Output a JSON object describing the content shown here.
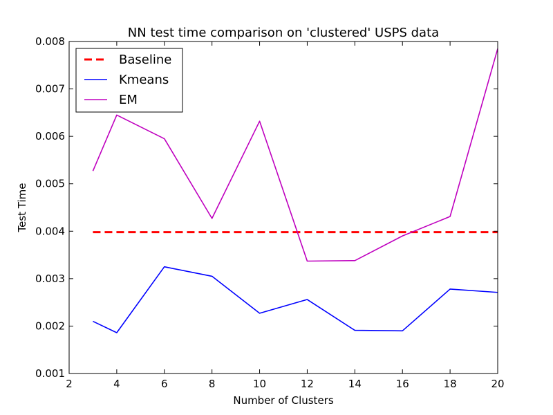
{
  "chart_data": {
    "type": "line",
    "title": "NN test time comparison on 'clustered' USPS data",
    "xlabel": "Number of Clusters",
    "ylabel": "Test Time",
    "xlim": [
      2,
      20
    ],
    "ylim": [
      0.001,
      0.008
    ],
    "xticks": [
      2,
      4,
      6,
      8,
      10,
      12,
      14,
      16,
      18,
      20
    ],
    "yticks": [
      0.001,
      0.002,
      0.003,
      0.004,
      0.005,
      0.006,
      0.007,
      0.008
    ],
    "xtick_labels": [
      "2",
      "4",
      "6",
      "8",
      "10",
      "12",
      "14",
      "16",
      "18",
      "20"
    ],
    "ytick_labels": [
      "0.001",
      "0.002",
      "0.003",
      "0.004",
      "0.005",
      "0.006",
      "0.007",
      "0.008"
    ],
    "grid": false,
    "legend_position": "top-left",
    "x": [
      3,
      4,
      6,
      8,
      10,
      12,
      14,
      16,
      18,
      20
    ],
    "series": [
      {
        "name": "Baseline",
        "color": "#ff0000",
        "style": "dashed",
        "values": [
          0.00398,
          0.00398,
          0.00398,
          0.00398,
          0.00398,
          0.00398,
          0.00398,
          0.00398,
          0.00398,
          0.00398
        ]
      },
      {
        "name": "Kmeans",
        "color": "#0000ff",
        "style": "solid",
        "values": [
          0.0021,
          0.00186,
          0.00325,
          0.00305,
          0.00227,
          0.00256,
          0.00191,
          0.0019,
          0.00278,
          0.00271
        ]
      },
      {
        "name": "EM",
        "color": "#bf00bf",
        "style": "solid",
        "values": [
          0.00527,
          0.00645,
          0.00595,
          0.00427,
          0.00632,
          0.00337,
          0.00338,
          0.0039,
          0.00431,
          0.00785
        ]
      }
    ]
  }
}
